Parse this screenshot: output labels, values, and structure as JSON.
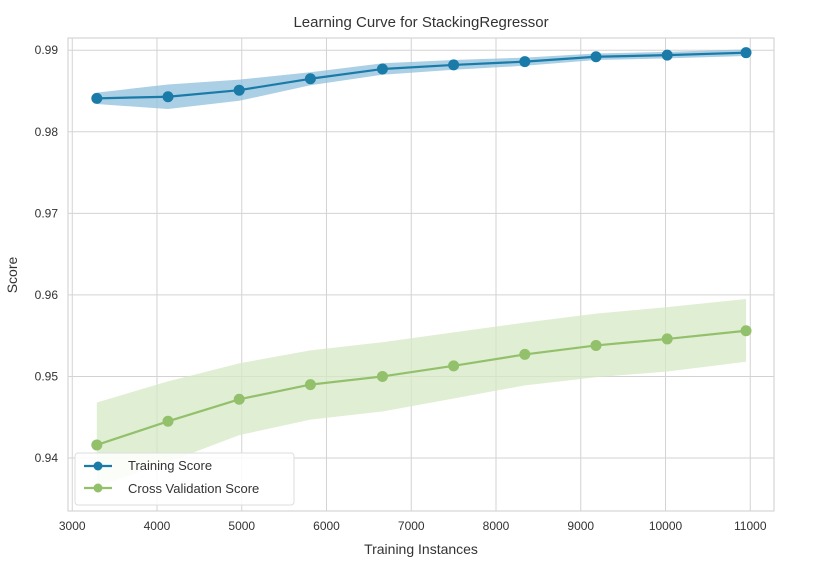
{
  "chart_data": {
    "type": "line",
    "title": "Learning Curve for StackingRegressor",
    "xlabel": "Training Instances",
    "ylabel": "Score",
    "xlim": [
      2950,
      11280
    ],
    "ylim": [
      0.9335,
      0.9915
    ],
    "xticks": [
      3000,
      4000,
      5000,
      6000,
      7000,
      8000,
      9000,
      10000,
      11000
    ],
    "yticks": [
      0.94,
      0.95,
      0.96,
      0.97,
      0.98,
      0.99
    ],
    "xtick_labels": [
      "3000",
      "4000",
      "5000",
      "6000",
      "7000",
      "8000",
      "9000",
      "10000",
      "11000"
    ],
    "ytick_labels": [
      "0.94",
      "0.95",
      "0.96",
      "0.97",
      "0.98",
      "0.99"
    ],
    "grid": true,
    "legend_position": "lower-left",
    "x": [
      3290,
      4130,
      4970,
      5810,
      6660,
      7500,
      8340,
      9180,
      10020,
      10950
    ],
    "series": [
      {
        "name": "Training Score",
        "color": "#1a7aa8",
        "band_color": "#8fbfdb",
        "values": [
          0.9841,
          0.9843,
          0.9851,
          0.9865,
          0.9877,
          0.9882,
          0.9886,
          0.9892,
          0.9894,
          0.9897
        ],
        "band_low": [
          0.9834,
          0.9828,
          0.9838,
          0.9857,
          0.987,
          0.9876,
          0.9881,
          0.9888,
          0.989,
          0.9893
        ],
        "band_high": [
          0.9848,
          0.9858,
          0.9864,
          0.9873,
          0.9884,
          0.9888,
          0.9891,
          0.9896,
          0.9898,
          0.9901
        ]
      },
      {
        "name": "Cross Validation Score",
        "color": "#93c06b",
        "band_color": "#d6e8c6",
        "values": [
          0.9416,
          0.9445,
          0.9472,
          0.949,
          0.95,
          0.9513,
          0.9527,
          0.9538,
          0.9546,
          0.9556
        ],
        "band_low": [
          0.9365,
          0.9395,
          0.9428,
          0.9447,
          0.9457,
          0.9473,
          0.9489,
          0.9499,
          0.9506,
          0.9518
        ],
        "band_high": [
          0.9468,
          0.9494,
          0.9516,
          0.9532,
          0.9542,
          0.9554,
          0.9566,
          0.9577,
          0.9585,
          0.9595
        ]
      }
    ]
  }
}
